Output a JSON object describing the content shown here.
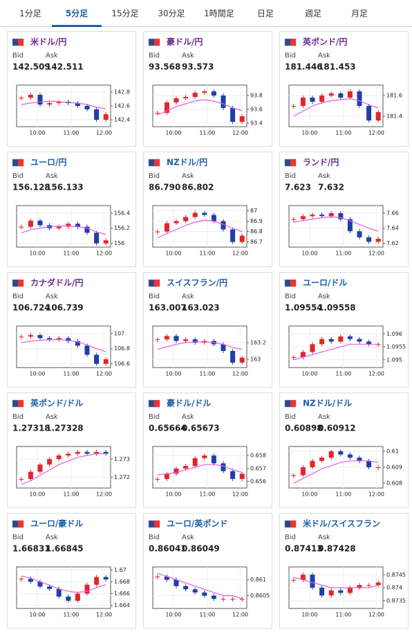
{
  "tabs": [
    "1分足",
    "5分足",
    "15分足",
    "30分足",
    "1時間足",
    "日足",
    "週足",
    "月足"
  ],
  "active_tab": 1,
  "labels": {
    "bid": "Bid",
    "ask": "Ask"
  },
  "cards": [
    {
      "name": "米ドル/円",
      "title_color": "#6b2a8c",
      "bid": "142.509",
      "ask": "142.511",
      "chart": {
        "type": "candlestick",
        "xticks": [
          "10:00",
          "11:00",
          "12:00"
        ],
        "ylim": [
          142.3,
          142.9
        ],
        "yticks": [
          142.4,
          142.6,
          142.8
        ],
        "closes": [
          142.72,
          142.76,
          142.62,
          142.64,
          142.66,
          142.64,
          142.6,
          142.55,
          142.4,
          142.48
        ],
        "ma": [
          142.62,
          142.64,
          142.66,
          142.67,
          142.66,
          142.65,
          142.64,
          142.62,
          142.58,
          142.56
        ]
      }
    },
    {
      "name": "豪ドル/円",
      "title_color": "#6b2a8c",
      "bid": "93.568",
      "ask": "93.573",
      "chart": {
        "type": "candlestick",
        "xticks": [
          "10:00",
          "11:00",
          "12:00"
        ],
        "ylim": [
          93.35,
          93.95
        ],
        "yticks": [
          93.4,
          93.6,
          93.8
        ],
        "closes": [
          93.55,
          93.7,
          93.76,
          93.78,
          93.84,
          93.86,
          93.8,
          93.62,
          93.42,
          93.5
        ],
        "ma": [
          93.52,
          93.58,
          93.64,
          93.68,
          93.72,
          93.74,
          93.72,
          93.68,
          93.62,
          93.58
        ]
      }
    },
    {
      "name": "英ポンド/円",
      "title_color": "#6b2a8c",
      "bid": "181.446",
      "ask": "181.453",
      "chart": {
        "type": "candlestick",
        "xticks": [
          "10:00",
          "11:00",
          "12:00"
        ],
        "ylim": [
          181.3,
          181.7
        ],
        "yticks": [
          181.4,
          181.6
        ],
        "closes": [
          181.5,
          181.58,
          181.54,
          181.6,
          181.62,
          181.58,
          181.64,
          181.5,
          181.36,
          181.44
        ],
        "ma": [
          181.4,
          181.45,
          181.5,
          181.53,
          181.55,
          181.56,
          181.57,
          181.55,
          181.51,
          181.48
        ]
      }
    },
    {
      "name": "ユーロ/円",
      "title_color": "#1a5fa8",
      "bid": "156.128",
      "ask": "156.133",
      "chart": {
        "type": "candlestick",
        "xticks": [
          "10:00",
          "11:00",
          "12:00"
        ],
        "ylim": [
          155.95,
          156.5
        ],
        "yticks": [
          156,
          156.2,
          156.4
        ],
        "closes": [
          156.22,
          156.3,
          156.24,
          156.2,
          156.22,
          156.26,
          156.22,
          156.14,
          156.0,
          156.04
        ],
        "ma": [
          156.14,
          156.18,
          156.2,
          156.22,
          156.23,
          156.23,
          156.22,
          156.2,
          156.15,
          156.12
        ]
      }
    },
    {
      "name": "NZドル/円",
      "title_color": "#1a5fa8",
      "bid": "86.790",
      "ask": "86.802",
      "chart": {
        "type": "candlestick",
        "xticks": [
          "10:00",
          "11:00",
          "12:00"
        ],
        "ylim": [
          86.65,
          87.05
        ],
        "yticks": [
          86.7,
          86.8,
          86.9,
          87
        ],
        "closes": [
          86.8,
          86.88,
          86.9,
          86.94,
          86.98,
          86.96,
          86.9,
          86.82,
          86.7,
          86.76
        ],
        "ma": [
          86.74,
          86.78,
          86.82,
          86.86,
          86.89,
          86.91,
          86.9,
          86.87,
          86.83,
          86.8
        ]
      }
    },
    {
      "name": "ランド/円",
      "title_color": "#6b2a8c",
      "bid": "7.623",
      "ask": "7.632",
      "chart": {
        "type": "candlestick",
        "xticks": [
          "10:00",
          "11:00",
          "12:00"
        ],
        "ylim": [
          7.615,
          7.67
        ],
        "yticks": [
          7.62,
          7.64,
          7.66
        ],
        "closes": [
          7.652,
          7.656,
          7.658,
          7.656,
          7.66,
          7.652,
          7.636,
          7.628,
          7.622,
          7.626
        ],
        "ma": [
          7.648,
          7.65,
          7.652,
          7.654,
          7.655,
          7.654,
          7.65,
          7.645,
          7.64,
          7.636
        ]
      }
    },
    {
      "name": "カナダドル/円",
      "title_color": "#6b2a8c",
      "bid": "106.724",
      "ask": "106.739",
      "chart": {
        "type": "candlestick",
        "xticks": [
          "10:00",
          "11:00",
          "12:00"
        ],
        "ylim": [
          106.55,
          107.1
        ],
        "yticks": [
          106.6,
          106.8,
          107
        ],
        "closes": [
          106.96,
          106.98,
          106.94,
          106.92,
          106.94,
          106.9,
          106.84,
          106.72,
          106.6,
          106.66
        ],
        "ma": [
          106.88,
          106.9,
          106.91,
          106.92,
          106.92,
          106.91,
          106.89,
          106.85,
          106.8,
          106.76
        ]
      }
    },
    {
      "name": "スイスフラン/円",
      "title_color": "#1a5fa8",
      "bid": "163.007",
      "ask": "163.023",
      "chart": {
        "type": "candlestick",
        "xticks": [
          "10:00",
          "11:00",
          "12:00"
        ],
        "ylim": [
          162.9,
          163.4
        ],
        "yticks": [
          163,
          163.2
        ],
        "closes": [
          163.24,
          163.28,
          163.22,
          163.24,
          163.2,
          163.22,
          163.18,
          163.1,
          162.96,
          163.02
        ],
        "ma": [
          163.12,
          163.15,
          163.18,
          163.2,
          163.21,
          163.21,
          163.2,
          163.18,
          163.14,
          163.12
        ]
      }
    },
    {
      "name": "ユーロ/ドル",
      "title_color": "#1a5fa8",
      "bid": "1.09554",
      "ask": "1.09558",
      "chart": {
        "type": "candlestick",
        "xticks": [
          "10:00",
          "11:00",
          "12:00"
        ],
        "ylim": [
          1.0947,
          1.0963
        ],
        "yticks": [
          1.095,
          1.0955,
          1.096
        ],
        "closes": [
          1.0951,
          1.0953,
          1.0956,
          1.0958,
          1.0957,
          1.0959,
          1.0958,
          1.0957,
          1.0956,
          1.0956
        ],
        "ma": [
          1.095,
          1.0951,
          1.0952,
          1.0953,
          1.0954,
          1.0955,
          1.0956,
          1.0956,
          1.0956,
          1.0956
        ]
      }
    },
    {
      "name": "英ポンド/ドル",
      "title_color": "#1a5fa8",
      "bid": "1.27318",
      "ask": "1.27328",
      "chart": {
        "type": "candlestick",
        "xticks": [
          "10:00",
          "11:00",
          "12:00"
        ],
        "ylim": [
          1.2714,
          1.2737
        ],
        "yticks": [
          1.272,
          1.273
        ],
        "closes": [
          1.2719,
          1.2723,
          1.2727,
          1.273,
          1.2732,
          1.2733,
          1.2734,
          1.2733,
          1.2734,
          1.2733
        ],
        "ma": [
          1.2716,
          1.2718,
          1.2721,
          1.2724,
          1.2727,
          1.2729,
          1.2731,
          1.2732,
          1.2733,
          1.2733
        ]
      }
    },
    {
      "name": "豪ドル/ドル",
      "title_color": "#1a5fa8",
      "bid": "0.65664",
      "ask": "0.65673",
      "chart": {
        "type": "candlestick",
        "xticks": [
          "10:00",
          "11:00",
          "12:00"
        ],
        "ylim": [
          0.6555,
          0.6587
        ],
        "yticks": [
          0.656,
          0.657,
          0.658
        ],
        "closes": [
          0.6562,
          0.6566,
          0.657,
          0.6572,
          0.6578,
          0.658,
          0.6574,
          0.6568,
          0.6562,
          0.6566
        ],
        "ma": [
          0.6565,
          0.6566,
          0.6567,
          0.6569,
          0.6571,
          0.6573,
          0.6573,
          0.6572,
          0.6569,
          0.6567
        ]
      }
    },
    {
      "name": "NZドル/ドル",
      "title_color": "#1a5fa8",
      "bid": "0.60898",
      "ask": "0.60912",
      "chart": {
        "type": "candlestick",
        "xticks": [
          "10:00",
          "11:00",
          "12:00"
        ],
        "ylim": [
          0.6077,
          0.6103
        ],
        "yticks": [
          0.608,
          0.609,
          0.61
        ],
        "closes": [
          0.6085,
          0.609,
          0.6094,
          0.6096,
          0.61,
          0.6098,
          0.6096,
          0.6094,
          0.609,
          0.609
        ],
        "ma": [
          0.608,
          0.6083,
          0.6086,
          0.6089,
          0.6091,
          0.6093,
          0.6094,
          0.6094,
          0.6094,
          0.6093
        ]
      }
    },
    {
      "name": "ユーロ/豪ドル",
      "title_color": "#1a5fa8",
      "bid": "1.66831",
      "ask": "1.66845",
      "chart": {
        "type": "candlestick",
        "xticks": [
          "10:00",
          "11:00",
          "12:00"
        ],
        "ylim": [
          1.6635,
          1.6705
        ],
        "yticks": [
          1.664,
          1.666,
          1.668,
          1.67
        ],
        "closes": [
          1.6685,
          1.668,
          1.6672,
          1.6668,
          1.6655,
          1.6648,
          1.666,
          1.6675,
          1.6688,
          1.6684
        ],
        "ma": [
          1.669,
          1.6686,
          1.668,
          1.6674,
          1.6668,
          1.6664,
          1.6662,
          1.6664,
          1.667,
          1.6675
        ]
      }
    },
    {
      "name": "ユーロ/英ポンド",
      "title_color": "#1a5fa8",
      "bid": "0.86041",
      "ask": "0.86049",
      "chart": {
        "type": "candlestick",
        "xticks": [
          "10:00",
          "11:00",
          "12:00"
        ],
        "ylim": [
          0.8601,
          0.8614
        ],
        "yticks": [
          0.8605,
          0.861
        ],
        "closes": [
          0.8611,
          0.861,
          0.8608,
          0.8607,
          0.8606,
          0.8605,
          0.8604,
          0.8604,
          0.8604,
          0.8604
        ],
        "ma": [
          0.8612,
          0.8611,
          0.861,
          0.8609,
          0.8608,
          0.8607,
          0.8606,
          0.8605,
          0.8605,
          0.8604
        ]
      }
    },
    {
      "name": "米ドル/スイスフラン",
      "title_color": "#1a5fa8",
      "bid": "0.87413",
      "ask": "0.87428",
      "chart": {
        "type": "candlestick",
        "xticks": [
          "10:00",
          "11:00",
          "12:00"
        ],
        "ylim": [
          0.8732,
          0.8748
        ],
        "yticks": [
          0.8735,
          0.874,
          0.8745
        ],
        "closes": [
          0.8743,
          0.8745,
          0.874,
          0.8737,
          0.8739,
          0.8738,
          0.874,
          0.8741,
          0.8741,
          0.8742
        ],
        "ma": [
          0.8744,
          0.8743,
          0.8742,
          0.8741,
          0.874,
          0.874,
          0.874,
          0.874,
          0.874,
          0.8741
        ]
      }
    }
  ]
}
